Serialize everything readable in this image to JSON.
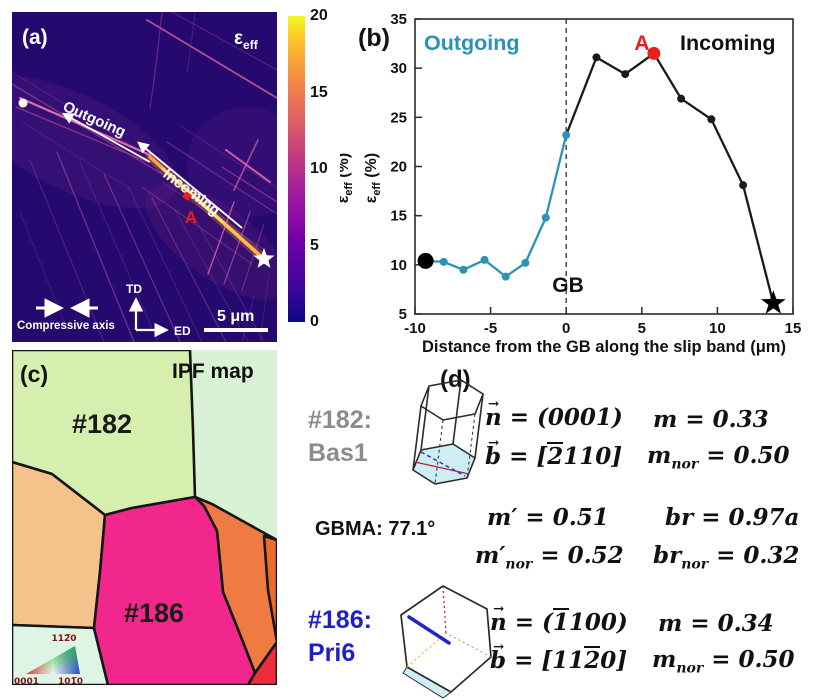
{
  "panel_a": {
    "label": "(a)",
    "map_label": {
      "base": "ε",
      "sub": "eff"
    },
    "annotations": {
      "outgoing": "Outgoing",
      "incoming": "Incoming",
      "point_a": "A",
      "compressive_axis": "Compressive axis",
      "axis_td": "TD",
      "axis_ed": "ED",
      "scale_bar": "5 μm"
    },
    "colorbar": {
      "ticks": [
        "20",
        "15",
        "10",
        "5",
        "0"
      ],
      "top_color": "#f0f921",
      "bottom_color": "#0d0887"
    }
  },
  "panel_b": {
    "label": "(b)",
    "region_left": "Outgoing",
    "region_right": "Incoming",
    "point_a": "A",
    "gb": "GB",
    "xlabel": "Distance from the GB along the slip band (μm)",
    "ylabel": {
      "base": "ε",
      "sub": "eff",
      "unit": " (%)"
    }
  },
  "chart_data": {
    "type": "line",
    "title": "",
    "xlabel": "Distance from the GB along the slip band (μm)",
    "ylabel": "ε_eff (%)",
    "xlim": [
      -10,
      15
    ],
    "ylim": [
      5,
      35
    ],
    "xticks": [
      -10,
      -5,
      0,
      5,
      10,
      15
    ],
    "yticks": [
      5,
      10,
      15,
      20,
      25,
      30,
      35
    ],
    "grid": false,
    "gb_line_x": 0,
    "series": [
      {
        "name": "Outgoing",
        "color": "#2a93b5",
        "x": [
          -9.3,
          -8.1,
          -6.8,
          -5.4,
          -4.0,
          -2.7,
          -1.35,
          0
        ],
        "y": [
          10.4,
          10.3,
          9.5,
          10.5,
          8.8,
          10.2,
          14.8,
          23.2
        ]
      },
      {
        "name": "Incoming",
        "color": "#1a1a1a",
        "x": [
          0,
          2.0,
          3.9,
          5.8,
          7.6,
          9.6,
          11.7,
          13.7
        ],
        "y": [
          23.2,
          31.1,
          29.4,
          31.5,
          26.9,
          24.8,
          18.1,
          6.1
        ]
      }
    ],
    "special_markers": {
      "start_dot": {
        "x": -9.3,
        "y": 10.4,
        "color": "#000000",
        "radius": 8
      },
      "point_a": {
        "x": 5.8,
        "y": 31.5,
        "color": "#e8211d",
        "radius": 6.5,
        "label": "A"
      },
      "end_star": {
        "x": 13.7,
        "y": 6.1,
        "color": "#000000"
      }
    }
  },
  "panel_c": {
    "label": "(c)",
    "title": "IPF map",
    "grain_182": "#182",
    "grain_186": "#186",
    "colors": {
      "grain_182": "#d6efae",
      "grain_186": "#f2278c",
      "left_orange": "#f6c28c",
      "right_orange": "#ef7b42",
      "far_right_orange": "#ea6c28",
      "bottom_red": "#ee2c3c",
      "mint": "#d9f2d6"
    },
    "ipf_triangle": {
      "top": "112̅0",
      "bottom_left": "0001",
      "bottom_right": "101̅0"
    }
  },
  "panel_d": {
    "label": "(d)",
    "grain1": {
      "id": "#182:",
      "mode": "Bas1",
      "n": {
        "arrow": "→",
        "letter": "n",
        "pre": " = (0001)",
        "ov": "",
        "post": ""
      },
      "b": {
        "arrow": "→",
        "letter": "b",
        "pre": " = [",
        "ov": "2",
        "post": "110]"
      },
      "m": {
        "pre": "m",
        "sub": "",
        "post": " = 0.33"
      },
      "m_nor": {
        "pre": "m",
        "sub": "nor",
        "post": " = 0.50"
      }
    },
    "gbma": {
      "label": "GBMA: 77.1°",
      "m_prime": {
        "pre": "m′",
        "sub": "",
        "post": " = 0.51"
      },
      "m_prime_nor": {
        "pre": "m′",
        "sub": "nor",
        "post": " = 0.52"
      },
      "br": {
        "pre": "br",
        "sub": "",
        "post": " = 0.97a"
      },
      "br_nor": {
        "pre": "br",
        "sub": "nor",
        "post": " = 0.32"
      }
    },
    "grain2": {
      "id": "#186:",
      "mode": "Pri6",
      "n": {
        "arrow": "→",
        "letter": "n",
        "pre": " = (",
        "ov": "1",
        "post": "100)"
      },
      "b": {
        "arrow": "→",
        "letter": "b",
        "pre": " = [11",
        "ov": "2",
        "post": "0]"
      },
      "m": {
        "pre": "m",
        "sub": "",
        "post": " = 0.34"
      },
      "m_nor": {
        "pre": "m",
        "sub": "nor",
        "post": " = 0.50"
      }
    }
  }
}
